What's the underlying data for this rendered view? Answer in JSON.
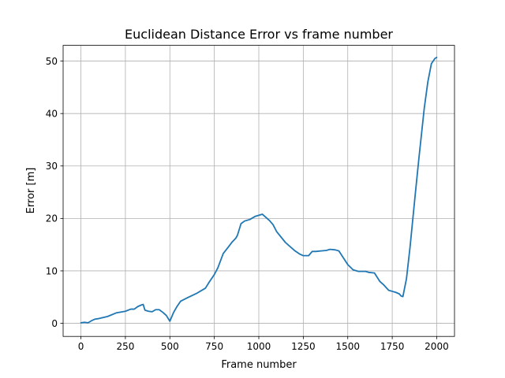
{
  "chart_data": {
    "type": "line",
    "title": "Euclidean Distance Error vs frame number",
    "xlabel": "Frame number",
    "ylabel": "Error [m]",
    "xlim": [
      -100,
      2100
    ],
    "ylim": [
      -2.5,
      53
    ],
    "xticks": [
      0,
      250,
      500,
      750,
      1000,
      1250,
      1500,
      1750,
      2000
    ],
    "yticks": [
      0,
      10,
      20,
      30,
      40,
      50
    ],
    "grid": true,
    "colors": {
      "series": "#1f77b4"
    },
    "series": [
      {
        "x": [
          0,
          20,
          40,
          60,
          80,
          100,
          150,
          200,
          250,
          280,
          300,
          320,
          340,
          350,
          360,
          380,
          400,
          420,
          440,
          460,
          480,
          500,
          520,
          540,
          560,
          600,
          650,
          700,
          720,
          750,
          770,
          800,
          830,
          850,
          870,
          880,
          900,
          920,
          950,
          980,
          1000,
          1020,
          1040,
          1060,
          1080,
          1100,
          1150,
          1200,
          1230,
          1250,
          1280,
          1300,
          1320,
          1350,
          1380,
          1400,
          1430,
          1450,
          1500,
          1530,
          1560,
          1600,
          1620,
          1650,
          1680,
          1700,
          1730,
          1750,
          1770,
          1790,
          1800,
          1810,
          1830,
          1850,
          1880,
          1900,
          1930,
          1950,
          1970,
          1990,
          2000
        ],
        "y": [
          0.1,
          0.2,
          0.1,
          0.5,
          0.8,
          0.9,
          1.3,
          2.0,
          2.3,
          2.7,
          2.7,
          3.2,
          3.5,
          3.6,
          2.5,
          2.3,
          2.2,
          2.6,
          2.6,
          2.1,
          1.5,
          0.4,
          2.0,
          3.2,
          4.2,
          4.9,
          5.7,
          6.7,
          7.8,
          9.3,
          10.6,
          13.3,
          14.6,
          15.5,
          16.2,
          16.8,
          19.0,
          19.5,
          19.8,
          20.4,
          20.6,
          20.8,
          20.2,
          19.6,
          18.8,
          17.5,
          15.4,
          13.9,
          13.2,
          12.9,
          12.9,
          13.7,
          13.7,
          13.8,
          13.9,
          14.1,
          14.0,
          13.8,
          11.2,
          10.2,
          9.9,
          9.9,
          9.7,
          9.6,
          8.0,
          7.4,
          6.3,
          6.1,
          5.9,
          5.6,
          5.2,
          5.1,
          8.5,
          14.5,
          24.8,
          31.5,
          41.0,
          46.0,
          49.5,
          50.5,
          50.7
        ]
      }
    ]
  }
}
